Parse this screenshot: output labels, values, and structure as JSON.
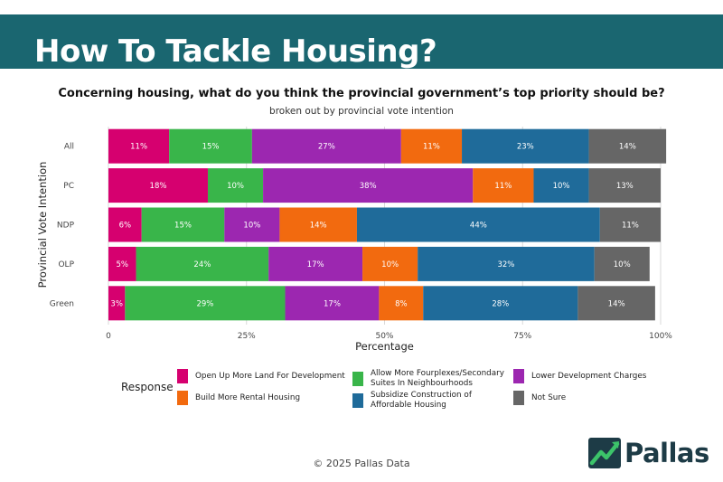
{
  "banner": {
    "title": "How To Tackle Housing?"
  },
  "chart_data": {
    "type": "bar",
    "orientation": "horizontal",
    "stacked": "100%",
    "title": "Concerning housing, what do you think the provincial government’s top priority should be?",
    "subtitle": "broken out by provincial vote intention",
    "xlabel": "Percentage",
    "ylabel": "Provincial Vote Intention",
    "xlim": [
      0,
      100
    ],
    "xticks": [
      "0",
      "25%",
      "50%",
      "75%",
      "100%"
    ],
    "categories": [
      "All",
      "PC",
      "NDP",
      "OLP",
      "Green"
    ],
    "series": [
      {
        "name": "Open Up More Land For Development",
        "color": "#d6006f",
        "values": [
          11,
          18,
          6,
          5,
          3
        ]
      },
      {
        "name": "Allow More Fourplexes/Secondary Suites In Neighbourhoods",
        "color": "#39b54a",
        "values": [
          15,
          10,
          15,
          24,
          29
        ]
      },
      {
        "name": "Lower Development Charges",
        "color": "#9c27b0",
        "values": [
          27,
          38,
          10,
          17,
          17
        ]
      },
      {
        "name": "Build More Rental Housing",
        "color": "#f26a0f",
        "values": [
          11,
          11,
          14,
          10,
          8
        ]
      },
      {
        "name": "Subsidize Construction of Affordable Housing",
        "color": "#1f6b9a",
        "values": [
          23,
          10,
          44,
          32,
          28
        ]
      },
      {
        "name": "Not Sure",
        "color": "#666666",
        "values": [
          14,
          13,
          11,
          10,
          14
        ]
      }
    ],
    "legend_title": "Response",
    "legend_position": "bottom"
  },
  "legend": [
    {
      "label": "Open Up More Land For Development",
      "color": "#d6006f"
    },
    {
      "label": "Allow More Fourplexes/Secondary\nSuites In Neighbourhoods",
      "color": "#39b54a"
    },
    {
      "label": "Lower Development Charges",
      "color": "#9c27b0"
    },
    {
      "label": "Build More Rental Housing",
      "color": "#f26a0f"
    },
    {
      "label": "Subsidize Construction of\nAffordable Housing",
      "color": "#1f6b9a"
    },
    {
      "label": "Not Sure",
      "color": "#666666"
    }
  ],
  "footer": {
    "copyright": "© 2025 Pallas Data"
  },
  "logo": {
    "text": "Pallas",
    "icon": "pallas-chart-logo-icon"
  }
}
